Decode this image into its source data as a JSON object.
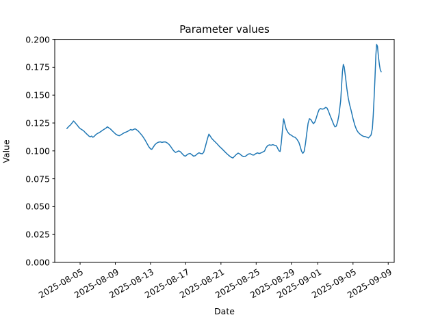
{
  "chart_data": {
    "type": "line",
    "title": "Parameter values",
    "xlabel": "Date",
    "ylabel": "Value",
    "legend": "none",
    "grid": false,
    "line_color": "#1f77b4",
    "background_color": "#ffffff",
    "x_unit": "days since 2025-08-03",
    "xlim_days": [
      -0.88,
      37.68
    ],
    "ylim": [
      0.0,
      0.2
    ],
    "xticks": [
      {
        "day": 2,
        "label": "2025-08-05"
      },
      {
        "day": 6,
        "label": "2025-08-09"
      },
      {
        "day": 10,
        "label": "2025-08-13"
      },
      {
        "day": 14,
        "label": "2025-08-17"
      },
      {
        "day": 18,
        "label": "2025-08-21"
      },
      {
        "day": 22,
        "label": "2025-08-25"
      },
      {
        "day": 26,
        "label": "2025-08-29"
      },
      {
        "day": 29,
        "label": "2025-09-01"
      },
      {
        "day": 33,
        "label": "2025-09-05"
      },
      {
        "day": 37,
        "label": "2025-09-09"
      }
    ],
    "yticks": [
      {
        "value": 0.0,
        "label": "0.000"
      },
      {
        "value": 0.025,
        "label": "0.025"
      },
      {
        "value": 0.05,
        "label": "0.050"
      },
      {
        "value": 0.075,
        "label": "0.075"
      },
      {
        "value": 0.1,
        "label": "0.100"
      },
      {
        "value": 0.125,
        "label": "0.125"
      },
      {
        "value": 0.15,
        "label": "0.150"
      },
      {
        "value": 0.175,
        "label": "0.175"
      },
      {
        "value": 0.2,
        "label": "0.200"
      }
    ],
    "series": [
      {
        "name": "parameter-values",
        "points": [
          [
            0.5,
            0.12
          ],
          [
            0.7,
            0.1218
          ],
          [
            0.9,
            0.1232
          ],
          [
            1.1,
            0.1252
          ],
          [
            1.25,
            0.1268
          ],
          [
            1.4,
            0.1256
          ],
          [
            1.55,
            0.1242
          ],
          [
            1.7,
            0.1228
          ],
          [
            1.85,
            0.1212
          ],
          [
            2.0,
            0.12
          ],
          [
            2.2,
            0.119
          ],
          [
            2.4,
            0.118
          ],
          [
            2.6,
            0.1163
          ],
          [
            2.8,
            0.1148
          ],
          [
            3.0,
            0.1133
          ],
          [
            3.15,
            0.1126
          ],
          [
            3.3,
            0.1133
          ],
          [
            3.45,
            0.1122
          ],
          [
            3.6,
            0.113
          ],
          [
            3.75,
            0.1143
          ],
          [
            3.95,
            0.1155
          ],
          [
            4.15,
            0.1163
          ],
          [
            4.35,
            0.1173
          ],
          [
            4.55,
            0.1185
          ],
          [
            4.75,
            0.1195
          ],
          [
            4.95,
            0.1205
          ],
          [
            5.1,
            0.1216
          ],
          [
            5.25,
            0.1207
          ],
          [
            5.45,
            0.1196
          ],
          [
            5.65,
            0.118
          ],
          [
            5.85,
            0.1165
          ],
          [
            6.05,
            0.115
          ],
          [
            6.25,
            0.1141
          ],
          [
            6.45,
            0.1136
          ],
          [
            6.6,
            0.1142
          ],
          [
            6.8,
            0.1152
          ],
          [
            7.0,
            0.1162
          ],
          [
            7.2,
            0.1168
          ],
          [
            7.4,
            0.1175
          ],
          [
            7.6,
            0.1185
          ],
          [
            7.75,
            0.1192
          ],
          [
            7.9,
            0.1186
          ],
          [
            8.1,
            0.1193
          ],
          [
            8.25,
            0.1198
          ],
          [
            8.4,
            0.119
          ],
          [
            8.6,
            0.1178
          ],
          [
            8.8,
            0.116
          ],
          [
            9.0,
            0.1142
          ],
          [
            9.2,
            0.112
          ],
          [
            9.4,
            0.1095
          ],
          [
            9.6,
            0.1066
          ],
          [
            9.8,
            0.1038
          ],
          [
            10.0,
            0.1018
          ],
          [
            10.15,
            0.1014
          ],
          [
            10.3,
            0.1032
          ],
          [
            10.5,
            0.1056
          ],
          [
            10.7,
            0.107
          ],
          [
            10.9,
            0.1078
          ],
          [
            11.1,
            0.1081
          ],
          [
            11.3,
            0.1076
          ],
          [
            11.5,
            0.108
          ],
          [
            11.7,
            0.108
          ],
          [
            11.9,
            0.1071
          ],
          [
            12.1,
            0.1058
          ],
          [
            12.3,
            0.1038
          ],
          [
            12.5,
            0.1014
          ],
          [
            12.7,
            0.0995
          ],
          [
            12.85,
            0.0986
          ],
          [
            13.0,
            0.0992
          ],
          [
            13.2,
            0.1
          ],
          [
            13.4,
            0.0992
          ],
          [
            13.6,
            0.0974
          ],
          [
            13.8,
            0.0958
          ],
          [
            13.95,
            0.0952
          ],
          [
            14.1,
            0.0962
          ],
          [
            14.3,
            0.0973
          ],
          [
            14.5,
            0.0977
          ],
          [
            14.7,
            0.0965
          ],
          [
            14.9,
            0.0952
          ],
          [
            15.1,
            0.0958
          ],
          [
            15.3,
            0.0972
          ],
          [
            15.5,
            0.0983
          ],
          [
            15.7,
            0.0976
          ],
          [
            15.9,
            0.0974
          ],
          [
            16.05,
            0.099
          ],
          [
            16.2,
            0.103
          ],
          [
            16.35,
            0.1075
          ],
          [
            16.5,
            0.1118
          ],
          [
            16.63,
            0.115
          ],
          [
            16.75,
            0.1136
          ],
          [
            16.95,
            0.1112
          ],
          [
            17.15,
            0.1095
          ],
          [
            17.35,
            0.108
          ],
          [
            17.6,
            0.106
          ],
          [
            17.85,
            0.1038
          ],
          [
            18.1,
            0.102
          ],
          [
            18.35,
            0.1
          ],
          [
            18.6,
            0.098
          ],
          [
            18.85,
            0.0962
          ],
          [
            19.1,
            0.0946
          ],
          [
            19.35,
            0.0936
          ],
          [
            19.55,
            0.0952
          ],
          [
            19.75,
            0.0968
          ],
          [
            19.95,
            0.098
          ],
          [
            20.15,
            0.0972
          ],
          [
            20.35,
            0.0958
          ],
          [
            20.55,
            0.0948
          ],
          [
            20.75,
            0.095
          ],
          [
            20.95,
            0.0962
          ],
          [
            21.15,
            0.0973
          ],
          [
            21.35,
            0.0974
          ],
          [
            21.55,
            0.0964
          ],
          [
            21.75,
            0.0963
          ],
          [
            21.95,
            0.0975
          ],
          [
            22.15,
            0.0982
          ],
          [
            22.35,
            0.0976
          ],
          [
            22.55,
            0.0982
          ],
          [
            22.75,
            0.099
          ],
          [
            22.95,
            0.0998
          ],
          [
            23.1,
            0.1025
          ],
          [
            23.3,
            0.1047
          ],
          [
            23.5,
            0.1054
          ],
          [
            23.7,
            0.1051
          ],
          [
            23.9,
            0.1056
          ],
          [
            24.1,
            0.105
          ],
          [
            24.3,
            0.1046
          ],
          [
            24.45,
            0.1022
          ],
          [
            24.6,
            0.1
          ],
          [
            24.72,
            0.0995
          ],
          [
            24.85,
            0.107
          ],
          [
            25.0,
            0.12
          ],
          [
            25.12,
            0.1287
          ],
          [
            25.25,
            0.1245
          ],
          [
            25.4,
            0.1197
          ],
          [
            25.6,
            0.1167
          ],
          [
            25.8,
            0.1148
          ],
          [
            26.0,
            0.114
          ],
          [
            26.2,
            0.1128
          ],
          [
            26.45,
            0.112
          ],
          [
            26.65,
            0.1102
          ],
          [
            26.85,
            0.1076
          ],
          [
            27.0,
            0.104
          ],
          [
            27.15,
            0.0998
          ],
          [
            27.3,
            0.0978
          ],
          [
            27.45,
            0.0995
          ],
          [
            27.6,
            0.1065
          ],
          [
            27.75,
            0.116
          ],
          [
            27.9,
            0.1248
          ],
          [
            28.05,
            0.1288
          ],
          [
            28.2,
            0.1282
          ],
          [
            28.35,
            0.1262
          ],
          [
            28.5,
            0.1244
          ],
          [
            28.65,
            0.1256
          ],
          [
            28.8,
            0.1288
          ],
          [
            29.0,
            0.134
          ],
          [
            29.15,
            0.137
          ],
          [
            29.3,
            0.138
          ],
          [
            29.5,
            0.1374
          ],
          [
            29.7,
            0.1378
          ],
          [
            29.9,
            0.139
          ],
          [
            30.05,
            0.1384
          ],
          [
            30.2,
            0.1358
          ],
          [
            30.4,
            0.1316
          ],
          [
            30.6,
            0.1278
          ],
          [
            30.8,
            0.1238
          ],
          [
            30.95,
            0.1215
          ],
          [
            31.1,
            0.1222
          ],
          [
            31.25,
            0.126
          ],
          [
            31.4,
            0.132
          ],
          [
            31.5,
            0.1385
          ],
          [
            31.6,
            0.145
          ],
          [
            31.7,
            0.158
          ],
          [
            31.8,
            0.171
          ],
          [
            31.9,
            0.1775
          ],
          [
            32.0,
            0.1752
          ],
          [
            32.15,
            0.1662
          ],
          [
            32.3,
            0.156
          ],
          [
            32.45,
            0.1478
          ],
          [
            32.6,
            0.142
          ],
          [
            32.8,
            0.1358
          ],
          [
            33.0,
            0.129
          ],
          [
            33.2,
            0.1232
          ],
          [
            33.4,
            0.119
          ],
          [
            33.6,
            0.1165
          ],
          [
            33.8,
            0.115
          ],
          [
            34.0,
            0.1138
          ],
          [
            34.2,
            0.113
          ],
          [
            34.4,
            0.1128
          ],
          [
            34.6,
            0.1122
          ],
          [
            34.75,
            0.1116
          ],
          [
            34.9,
            0.1128
          ],
          [
            35.05,
            0.1142
          ],
          [
            35.2,
            0.12
          ],
          [
            35.3,
            0.132
          ],
          [
            35.4,
            0.148
          ],
          [
            35.5,
            0.166
          ],
          [
            35.6,
            0.186
          ],
          [
            35.68,
            0.1955
          ],
          [
            35.78,
            0.1938
          ],
          [
            35.88,
            0.185
          ],
          [
            36.0,
            0.1772
          ],
          [
            36.1,
            0.1726
          ],
          [
            36.2,
            0.171
          ]
        ]
      }
    ]
  }
}
